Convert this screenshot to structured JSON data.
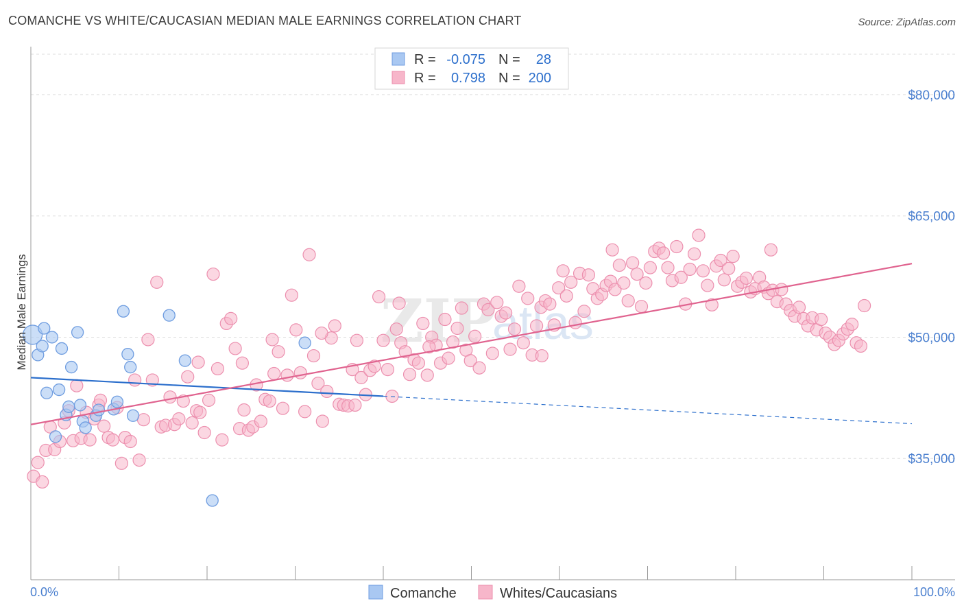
{
  "header": {
    "title": "COMANCHE VS WHITE/CAUCASIAN MEDIAN MALE EARNINGS CORRELATION CHART",
    "source": "Source: ZipAtlas.com"
  },
  "watermark": {
    "zip": "ZIP",
    "atlas": "atlas"
  },
  "colors": {
    "comanche_fill": "#a9c8f2",
    "comanche_stroke": "#6f9de0",
    "comanche_line": "#2c6fcc",
    "white_fill": "#f7b6ca",
    "white_stroke": "#ec8fae",
    "white_line": "#e0638f",
    "tick_label": "#4a7fcf",
    "grid": "#dddddd"
  },
  "legend_top": {
    "rows": [
      {
        "r_label": "R =",
        "r_value": "-0.075",
        "n_label": "N =",
        "n_value": "28"
      },
      {
        "r_label": "R =",
        "r_value": "0.798",
        "n_label": "N =",
        "n_value": "200"
      }
    ]
  },
  "legend_bottom": {
    "items": [
      "Comanche",
      "Whites/Caucasians"
    ]
  },
  "chart_data": {
    "type": "scatter",
    "ylabel": "Median Male Earnings",
    "xlim": [
      0,
      100
    ],
    "ylim": [
      20000,
      85000
    ],
    "x_tick_labels": [
      "0.0%",
      "100.0%"
    ],
    "y_ticks": [
      {
        "value": 35000,
        "label": "$35,000"
      },
      {
        "value": 50000,
        "label": "$50,000"
      },
      {
        "value": 65000,
        "label": "$65,000"
      },
      {
        "value": 80000,
        "label": "$80,000"
      }
    ],
    "grid": true,
    "series": [
      {
        "name": "Comanche",
        "trend": {
          "x0": 0,
          "y0": 45000,
          "x1": 40,
          "y1": 42700,
          "dash_to_x": 100,
          "dash_to_y": 39300
        },
        "points": [
          [
            0.2,
            50300
          ],
          [
            0.8,
            47800
          ],
          [
            1.3,
            48900
          ],
          [
            1.5,
            51100
          ],
          [
            1.8,
            43100
          ],
          [
            2.4,
            50000
          ],
          [
            2.8,
            37700
          ],
          [
            3.2,
            43500
          ],
          [
            3.5,
            48600
          ],
          [
            4.0,
            40400
          ],
          [
            4.3,
            41400
          ],
          [
            4.6,
            46300
          ],
          [
            5.3,
            50600
          ],
          [
            5.6,
            41600
          ],
          [
            5.9,
            39600
          ],
          [
            6.2,
            38800
          ],
          [
            7.4,
            40300
          ],
          [
            7.7,
            41000
          ],
          [
            9.4,
            41100
          ],
          [
            9.8,
            42000
          ],
          [
            10.5,
            53200
          ],
          [
            11.0,
            47900
          ],
          [
            11.3,
            46300
          ],
          [
            11.6,
            40300
          ],
          [
            15.7,
            52700
          ],
          [
            17.5,
            47100
          ],
          [
            20.6,
            29800
          ],
          [
            31.1,
            49300
          ]
        ]
      },
      {
        "name": "Whites/Caucasians",
        "trend": {
          "x0": 0,
          "y0": 39200,
          "x1": 100,
          "y1": 59100
        },
        "points": [
          [
            0.3,
            32800
          ],
          [
            0.8,
            34500
          ],
          [
            1.3,
            32100
          ],
          [
            1.7,
            36000
          ],
          [
            2.2,
            38900
          ],
          [
            2.7,
            36100
          ],
          [
            3.3,
            37100
          ],
          [
            3.8,
            39400
          ],
          [
            4.3,
            40900
          ],
          [
            4.8,
            37200
          ],
          [
            5.2,
            44000
          ],
          [
            5.7,
            37500
          ],
          [
            6.3,
            40700
          ],
          [
            6.7,
            37300
          ],
          [
            7.2,
            39900
          ],
          [
            7.7,
            41600
          ],
          [
            7.9,
            42200
          ],
          [
            8.3,
            39000
          ],
          [
            8.8,
            37600
          ],
          [
            9.3,
            37300
          ],
          [
            9.8,
            41300
          ],
          [
            10.3,
            34400
          ],
          [
            10.7,
            37600
          ],
          [
            11.3,
            37100
          ],
          [
            11.8,
            44700
          ],
          [
            12.3,
            34800
          ],
          [
            12.8,
            39800
          ],
          [
            13.3,
            49700
          ],
          [
            13.8,
            44700
          ],
          [
            14.3,
            56800
          ],
          [
            14.8,
            38900
          ],
          [
            15.3,
            39100
          ],
          [
            15.8,
            42600
          ],
          [
            16.3,
            39200
          ],
          [
            16.8,
            39900
          ],
          [
            17.3,
            42100
          ],
          [
            17.8,
            45100
          ],
          [
            18.3,
            39400
          ],
          [
            18.8,
            40900
          ],
          [
            19.2,
            40700
          ],
          [
            19.7,
            38200
          ],
          [
            20.2,
            42200
          ],
          [
            20.7,
            57800
          ],
          [
            21.2,
            46100
          ],
          [
            21.7,
            37300
          ],
          [
            22.2,
            51700
          ],
          [
            22.7,
            52300
          ],
          [
            23.2,
            48600
          ],
          [
            23.7,
            38700
          ],
          [
            24.2,
            41000
          ],
          [
            24.7,
            38500
          ],
          [
            25.2,
            38900
          ],
          [
            25.6,
            44100
          ],
          [
            26.1,
            39600
          ],
          [
            26.6,
            42300
          ],
          [
            27.1,
            42100
          ],
          [
            27.6,
            45500
          ],
          [
            28.1,
            48200
          ],
          [
            28.6,
            41200
          ],
          [
            29.1,
            45300
          ],
          [
            29.6,
            55200
          ],
          [
            30.1,
            50900
          ],
          [
            30.6,
            45600
          ],
          [
            31.1,
            40800
          ],
          [
            31.6,
            60200
          ],
          [
            32.1,
            47700
          ],
          [
            32.6,
            44300
          ],
          [
            33.1,
            39600
          ],
          [
            33.6,
            43300
          ],
          [
            34.1,
            49900
          ],
          [
            34.5,
            51400
          ],
          [
            35.0,
            41700
          ],
          [
            35.5,
            41600
          ],
          [
            36.0,
            41500
          ],
          [
            36.5,
            46000
          ],
          [
            37.0,
            49600
          ],
          [
            37.5,
            45000
          ],
          [
            38.0,
            42900
          ],
          [
            38.5,
            45900
          ],
          [
            39.0,
            46400
          ],
          [
            39.5,
            55000
          ],
          [
            40.0,
            49600
          ],
          [
            40.5,
            46000
          ],
          [
            41.0,
            42700
          ],
          [
            41.5,
            51000
          ],
          [
            42.0,
            49300
          ],
          [
            42.5,
            48200
          ],
          [
            43.0,
            45400
          ],
          [
            43.5,
            47200
          ],
          [
            44.0,
            46800
          ],
          [
            44.5,
            51700
          ],
          [
            45.0,
            45300
          ],
          [
            45.5,
            50000
          ],
          [
            46.0,
            49000
          ],
          [
            46.5,
            46800
          ],
          [
            47.0,
            52200
          ],
          [
            47.4,
            47400
          ],
          [
            47.9,
            49400
          ],
          [
            48.4,
            51100
          ],
          [
            48.9,
            53600
          ],
          [
            49.4,
            48400
          ],
          [
            49.9,
            47100
          ],
          [
            50.4,
            50100
          ],
          [
            50.9,
            46200
          ],
          [
            51.4,
            54100
          ],
          [
            51.9,
            53400
          ],
          [
            52.4,
            48000
          ],
          [
            52.9,
            54300
          ],
          [
            53.4,
            52600
          ],
          [
            53.9,
            53000
          ],
          [
            54.4,
            48500
          ],
          [
            54.9,
            51000
          ],
          [
            55.4,
            56300
          ],
          [
            55.9,
            49300
          ],
          [
            56.4,
            54800
          ],
          [
            56.9,
            47800
          ],
          [
            57.4,
            51400
          ],
          [
            57.9,
            53700
          ],
          [
            58.4,
            54500
          ],
          [
            58.9,
            54100
          ],
          [
            59.4,
            51500
          ],
          [
            59.9,
            56100
          ],
          [
            60.4,
            58200
          ],
          [
            60.8,
            55100
          ],
          [
            61.3,
            56800
          ],
          [
            61.8,
            51800
          ],
          [
            62.3,
            57900
          ],
          [
            62.8,
            53200
          ],
          [
            63.3,
            57700
          ],
          [
            63.8,
            56000
          ],
          [
            64.3,
            54800
          ],
          [
            64.8,
            55300
          ],
          [
            65.3,
            56400
          ],
          [
            65.8,
            56900
          ],
          [
            66.3,
            55900
          ],
          [
            66.8,
            58900
          ],
          [
            67.3,
            56700
          ],
          [
            67.8,
            54500
          ],
          [
            68.3,
            59200
          ],
          [
            68.8,
            57800
          ],
          [
            69.3,
            53800
          ],
          [
            69.8,
            56700
          ],
          [
            70.3,
            58600
          ],
          [
            70.8,
            60600
          ],
          [
            71.3,
            61000
          ],
          [
            71.8,
            60400
          ],
          [
            72.3,
            58600
          ],
          [
            72.8,
            57000
          ],
          [
            73.3,
            61200
          ],
          [
            73.8,
            57400
          ],
          [
            74.3,
            54100
          ],
          [
            74.8,
            58400
          ],
          [
            75.3,
            60300
          ],
          [
            75.8,
            62600
          ],
          [
            76.3,
            58200
          ],
          [
            76.8,
            56400
          ],
          [
            77.3,
            54000
          ],
          [
            77.8,
            58800
          ],
          [
            78.3,
            59500
          ],
          [
            78.7,
            57100
          ],
          [
            79.2,
            58500
          ],
          [
            79.7,
            60000
          ],
          [
            80.2,
            56300
          ],
          [
            80.7,
            56800
          ],
          [
            81.2,
            57300
          ],
          [
            81.7,
            55600
          ],
          [
            82.2,
            56000
          ],
          [
            82.7,
            57400
          ],
          [
            83.2,
            56200
          ],
          [
            83.7,
            55400
          ],
          [
            84.2,
            55800
          ],
          [
            84.7,
            54400
          ],
          [
            85.2,
            55900
          ],
          [
            85.7,
            54100
          ],
          [
            86.2,
            53300
          ],
          [
            86.7,
            52600
          ],
          [
            87.2,
            53700
          ],
          [
            87.7,
            52300
          ],
          [
            88.2,
            51400
          ],
          [
            88.7,
            52400
          ],
          [
            89.2,
            50900
          ],
          [
            89.7,
            52200
          ],
          [
            90.2,
            50500
          ],
          [
            90.7,
            50000
          ],
          [
            91.2,
            49100
          ],
          [
            91.7,
            49600
          ],
          [
            92.2,
            50400
          ],
          [
            92.7,
            51000
          ],
          [
            93.2,
            51600
          ],
          [
            93.7,
            49300
          ],
          [
            94.2,
            48900
          ],
          [
            94.6,
            53900
          ],
          [
            41.8,
            54200
          ],
          [
            27.4,
            49700
          ],
          [
            33.0,
            50500
          ],
          [
            19.0,
            46900
          ],
          [
            36.8,
            41600
          ],
          [
            24.0,
            46800
          ],
          [
            45.2,
            48800
          ],
          [
            58.0,
            47700
          ],
          [
            66.0,
            60800
          ],
          [
            84.0,
            60800
          ]
        ]
      }
    ]
  }
}
